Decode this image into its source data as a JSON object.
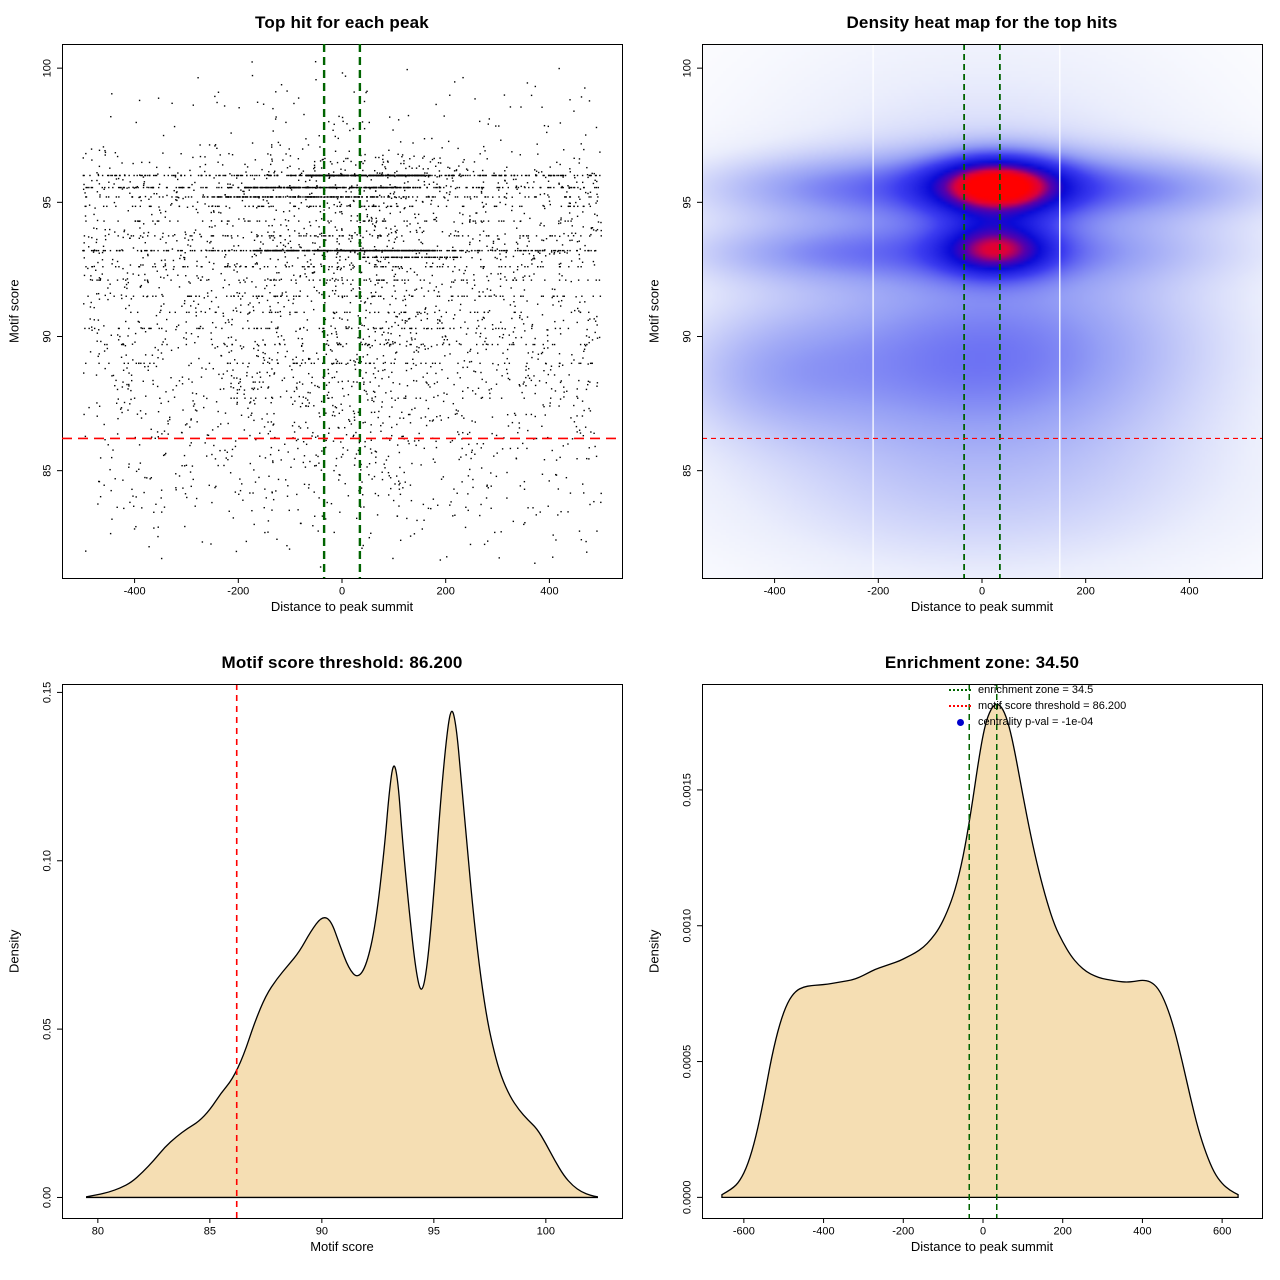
{
  "page": {
    "background": "#ffffff"
  },
  "colors": {
    "enrichment_green": "#006400",
    "threshold_red": "#FF0000",
    "point_black": "#000000",
    "density_fill": "#F5DEB3",
    "density_stroke": "#000000"
  },
  "chart_data": [
    {
      "id": "top-hits-scatter",
      "type": "scatter",
      "title": "Top hit for each peak",
      "xlabel": "Distance to peak summit",
      "ylabel": "Motif score",
      "xlim": [
        -540,
        540
      ],
      "ylim": [
        81.0,
        100.9
      ],
      "xticks": {
        "values": [
          -400,
          -200,
          0,
          200,
          400
        ],
        "labels": [
          "-400",
          "-200",
          "0",
          "200",
          "400"
        ]
      },
      "yticks": {
        "values": [
          85,
          90,
          95,
          100
        ],
        "labels": [
          "85",
          "90",
          "95",
          "100"
        ]
      },
      "enrichment_zone": 34.5,
      "score_threshold": 86.2,
      "points_spec": {
        "seed": 20,
        "n": 4200,
        "x_min": -500,
        "x_max": 500,
        "row_fraction": 0.38,
        "rows": [
          {
            "y": 96.0,
            "w": 10
          },
          {
            "y": 95.55,
            "w": 6
          },
          {
            "y": 95.2,
            "w": 4
          },
          {
            "y": 94.85,
            "w": 3
          },
          {
            "y": 94.3,
            "w": 2
          },
          {
            "y": 93.75,
            "w": 3
          },
          {
            "y": 93.2,
            "w": 9
          },
          {
            "y": 92.6,
            "w": 3
          },
          {
            "y": 92.1,
            "w": 3
          },
          {
            "y": 91.5,
            "w": 3
          },
          {
            "y": 90.9,
            "w": 2
          },
          {
            "y": 90.3,
            "w": 2
          },
          {
            "y": 89.7,
            "w": 2
          },
          {
            "y": 89.0,
            "w": 2
          },
          {
            "y": 88.3,
            "w": 1
          },
          {
            "y": 87.7,
            "w": 1
          }
        ],
        "mixture": [
          {
            "mu": 90.5,
            "sd": 2.4,
            "w": 0.38
          },
          {
            "mu": 93.2,
            "sd": 0.8,
            "w": 0.12
          },
          {
            "mu": 95.7,
            "sd": 0.8,
            "w": 0.16
          },
          {
            "mu": 87.5,
            "sd": 1.8,
            "w": 0.16
          },
          {
            "mu": 84.5,
            "sd": 1.6,
            "w": 0.12
          },
          {
            "mu": 97.5,
            "sd": 1.6,
            "w": 0.06
          }
        ],
        "y_min": 81.4,
        "y_max": 100.45,
        "segments": [
          {
            "y": 96.0,
            "x1": -70,
            "x2": 160,
            "n": 300
          },
          {
            "y": 95.55,
            "x1": -190,
            "x2": 130,
            "n": 220
          },
          {
            "y": 93.2,
            "x1": -170,
            "x2": 180,
            "n": 330
          },
          {
            "y": 95.2,
            "x1": -260,
            "x2": 60,
            "n": 120
          },
          {
            "y": 92.95,
            "x1": 40,
            "x2": 230,
            "n": 90
          }
        ]
      }
    },
    {
      "id": "top-hits-heatmap",
      "type": "heatmap",
      "title": "Density heat map for the top hits",
      "xlabel": "Distance to peak summit",
      "ylabel": "Motif score",
      "xlim": [
        -540,
        540
      ],
      "ylim": [
        81.0,
        100.9
      ],
      "xticks": {
        "values": [
          -400,
          -200,
          0,
          200,
          400
        ],
        "labels": [
          "-400",
          "-200",
          "0",
          "200",
          "400"
        ]
      },
      "yticks": {
        "values": [
          85,
          90,
          95,
          100
        ],
        "labels": [
          "85",
          "90",
          "95",
          "100"
        ]
      },
      "enrichment_zone": 34.5,
      "score_threshold": 86.2,
      "dmax": 2.4,
      "blobs": [
        {
          "cx": 0,
          "cy": 91.5,
          "sx": 330,
          "sy": 6.0,
          "a": 0.5
        },
        {
          "cx": 30,
          "cy": 95.6,
          "sx": 300,
          "sy": 0.9,
          "a": 0.55
        },
        {
          "cx": -320,
          "cy": 95.5,
          "sx": 190,
          "sy": 0.85,
          "a": 0.3
        },
        {
          "cx": 330,
          "cy": 95.5,
          "sx": 200,
          "sy": 0.85,
          "a": 0.28
        },
        {
          "cx": 25,
          "cy": 93.2,
          "sx": 300,
          "sy": 0.8,
          "a": 0.45
        },
        {
          "cx": -360,
          "cy": 93.1,
          "sx": 170,
          "sy": 0.75,
          "a": 0.28
        },
        {
          "cx": 30,
          "cy": 95.62,
          "sx": 90,
          "sy": 0.8,
          "a": 1.6
        },
        {
          "cx": 28,
          "cy": 93.25,
          "sx": 75,
          "sy": 0.7,
          "a": 1.15
        },
        {
          "cx": -420,
          "cy": 88.6,
          "sx": 140,
          "sy": 1.7,
          "a": 0.32
        },
        {
          "cx": -100,
          "cy": 88.8,
          "sx": 260,
          "sy": 1.9,
          "a": 0.25
        },
        {
          "cx": 0,
          "cy": 84.3,
          "sx": 390,
          "sy": 2.3,
          "a": 0.22
        },
        {
          "cx": 120,
          "cy": 89.6,
          "sx": 260,
          "sy": 2.2,
          "a": 0.25
        }
      ],
      "colormap": [
        [
          0,
          255,
          255,
          255
        ],
        [
          0.08,
          235,
          238,
          252
        ],
        [
          0.3,
          150,
          160,
          245
        ],
        [
          0.5,
          60,
          60,
          240
        ],
        [
          0.68,
          10,
          10,
          215
        ],
        [
          0.8,
          90,
          0,
          170
        ],
        [
          0.9,
          220,
          0,
          60
        ],
        [
          1,
          255,
          0,
          0
        ]
      ],
      "white_lines_x": [
        -210,
        150
      ]
    },
    {
      "id": "motif-score-density",
      "type": "area",
      "title": "Motif score threshold: 86.200",
      "xlabel": "Motif score",
      "ylabel": "Density",
      "xlim": [
        78.4,
        103.4
      ],
      "ylim": [
        -0.0061,
        0.1525
      ],
      "xticks": {
        "values": [
          80,
          85,
          90,
          95,
          100
        ],
        "labels": [
          "80",
          "85",
          "90",
          "95",
          "100"
        ]
      },
      "yticks": {
        "values": [
          0,
          0.05,
          0.1,
          0.15
        ],
        "labels": [
          "0.00",
          "0.05",
          "0.10",
          "0.15"
        ]
      },
      "score_threshold": 86.2,
      "fill": "#F5DEB3",
      "curve": {
        "points": [
          [
            79.5,
            0.0002
          ],
          [
            80,
            0.0008
          ],
          [
            80.5,
            0.0016
          ],
          [
            81,
            0.0028
          ],
          [
            81.5,
            0.0045
          ],
          [
            82,
            0.0075
          ],
          [
            82.5,
            0.011
          ],
          [
            83,
            0.015
          ],
          [
            83.5,
            0.018
          ],
          [
            84,
            0.0205
          ],
          [
            84.5,
            0.0225
          ],
          [
            85,
            0.026
          ],
          [
            85.5,
            0.031
          ],
          [
            86,
            0.035
          ],
          [
            86.5,
            0.042
          ],
          [
            87,
            0.052
          ],
          [
            87.5,
            0.06
          ],
          [
            88,
            0.065
          ],
          [
            88.5,
            0.069
          ],
          [
            89,
            0.073
          ],
          [
            89.5,
            0.079
          ],
          [
            90,
            0.0835
          ],
          [
            90.4,
            0.0825
          ],
          [
            90.8,
            0.075
          ],
          [
            91.2,
            0.068
          ],
          [
            91.6,
            0.065
          ],
          [
            92,
            0.069
          ],
          [
            92.4,
            0.081
          ],
          [
            92.8,
            0.104
          ],
          [
            93,
            0.12
          ],
          [
            93.2,
            0.13
          ],
          [
            93.4,
            0.124
          ],
          [
            93.6,
            0.106
          ],
          [
            93.9,
            0.085
          ],
          [
            94.2,
            0.067
          ],
          [
            94.45,
            0.06
          ],
          [
            94.7,
            0.068
          ],
          [
            95,
            0.09
          ],
          [
            95.3,
            0.118
          ],
          [
            95.6,
            0.139
          ],
          [
            95.8,
            0.146
          ],
          [
            96,
            0.14
          ],
          [
            96.2,
            0.126
          ],
          [
            96.5,
            0.103
          ],
          [
            96.8,
            0.082
          ],
          [
            97.1,
            0.065
          ],
          [
            97.4,
            0.052
          ],
          [
            97.7,
            0.043
          ],
          [
            98,
            0.036
          ],
          [
            98.4,
            0.03
          ],
          [
            98.8,
            0.026
          ],
          [
            99.2,
            0.023
          ],
          [
            99.6,
            0.0205
          ],
          [
            100,
            0.016
          ],
          [
            100.4,
            0.011
          ],
          [
            100.8,
            0.0065
          ],
          [
            101.2,
            0.0035
          ],
          [
            101.6,
            0.0016
          ],
          [
            102,
            0.0006
          ],
          [
            102.3,
            0.0002
          ]
        ]
      }
    },
    {
      "id": "summit-distance-density",
      "type": "area",
      "title": "Enrichment zone: 34.50",
      "xlabel": "Distance to peak summit",
      "ylabel": "Density",
      "xlim": [
        -705,
        700
      ],
      "ylim": [
        -7.6e-05,
        0.00189
      ],
      "xticks": {
        "values": [
          -600,
          -400,
          -200,
          0,
          200,
          400,
          600
        ],
        "labels": [
          "-600",
          "-400",
          "-200",
          "0",
          "200",
          "400",
          "600"
        ]
      },
      "yticks": {
        "values": [
          0,
          0.0005,
          0.001,
          0.0015
        ],
        "labels": [
          "0.0000",
          "0.0005",
          "0.0010",
          "0.0015"
        ]
      },
      "enrichment_zone": 34.5,
      "fill": "#F5DEB3",
      "curve": {
        "points": [
          [
            -655,
            1e-05
          ],
          [
            -630,
            3e-05
          ],
          [
            -610,
            6e-05
          ],
          [
            -590,
            0.00012
          ],
          [
            -570,
            0.00022
          ],
          [
            -550,
            0.00036
          ],
          [
            -530,
            0.00052
          ],
          [
            -510,
            0.00064
          ],
          [
            -490,
            0.00072
          ],
          [
            -470,
            0.00076
          ],
          [
            -450,
            0.000775
          ],
          [
            -430,
            0.00078
          ],
          [
            -410,
            0.000782
          ],
          [
            -390,
            0.000785
          ],
          [
            -370,
            0.00079
          ],
          [
            -350,
            0.000795
          ],
          [
            -330,
            0.0008
          ],
          [
            -310,
            0.00081
          ],
          [
            -290,
            0.000825
          ],
          [
            -270,
            0.00084
          ],
          [
            -250,
            0.00085
          ],
          [
            -230,
            0.00086
          ],
          [
            -210,
            0.00087
          ],
          [
            -190,
            0.000885
          ],
          [
            -170,
            0.0009
          ],
          [
            -150,
            0.00092
          ],
          [
            -130,
            0.00095
          ],
          [
            -110,
            0.00099
          ],
          [
            -90,
            0.00105
          ],
          [
            -70,
            0.00113
          ],
          [
            -50,
            0.00125
          ],
          [
            -30,
            0.00142
          ],
          [
            -10,
            0.00162
          ],
          [
            5,
            0.00174
          ],
          [
            20,
            0.0018
          ],
          [
            35,
            0.00182
          ],
          [
            50,
            0.0018
          ],
          [
            65,
            0.00174
          ],
          [
            80,
            0.00164
          ],
          [
            100,
            0.00148
          ],
          [
            120,
            0.00133
          ],
          [
            140,
            0.0012
          ],
          [
            160,
            0.00109
          ],
          [
            180,
            0.001
          ],
          [
            200,
            0.00094
          ],
          [
            220,
            0.00089
          ],
          [
            240,
            0.000855
          ],
          [
            260,
            0.00083
          ],
          [
            280,
            0.000815
          ],
          [
            300,
            0.000805
          ],
          [
            320,
            0.0008
          ],
          [
            340,
            0.000795
          ],
          [
            360,
            0.000792
          ],
          [
            380,
            0.000795
          ],
          [
            400,
            0.0008
          ],
          [
            420,
            0.000795
          ],
          [
            440,
            0.00077
          ],
          [
            460,
            0.00071
          ],
          [
            480,
            0.00062
          ],
          [
            500,
            0.0005
          ],
          [
            520,
            0.00037
          ],
          [
            540,
            0.00025
          ],
          [
            560,
            0.00016
          ],
          [
            580,
            9e-05
          ],
          [
            600,
            5e-05
          ],
          [
            620,
            2.5e-05
          ],
          [
            640,
            1e-05
          ]
        ]
      },
      "legend": [
        {
          "label": "enrichment zone = 34.5",
          "marker": "dotted-line",
          "color": "#006400"
        },
        {
          "label": "motif score threshold = 86.200",
          "marker": "dotted-line",
          "color": "#FF0000"
        },
        {
          "label": "centrality p-val = -1e-04",
          "marker": "dot",
          "color": "#0000CD"
        }
      ]
    }
  ]
}
